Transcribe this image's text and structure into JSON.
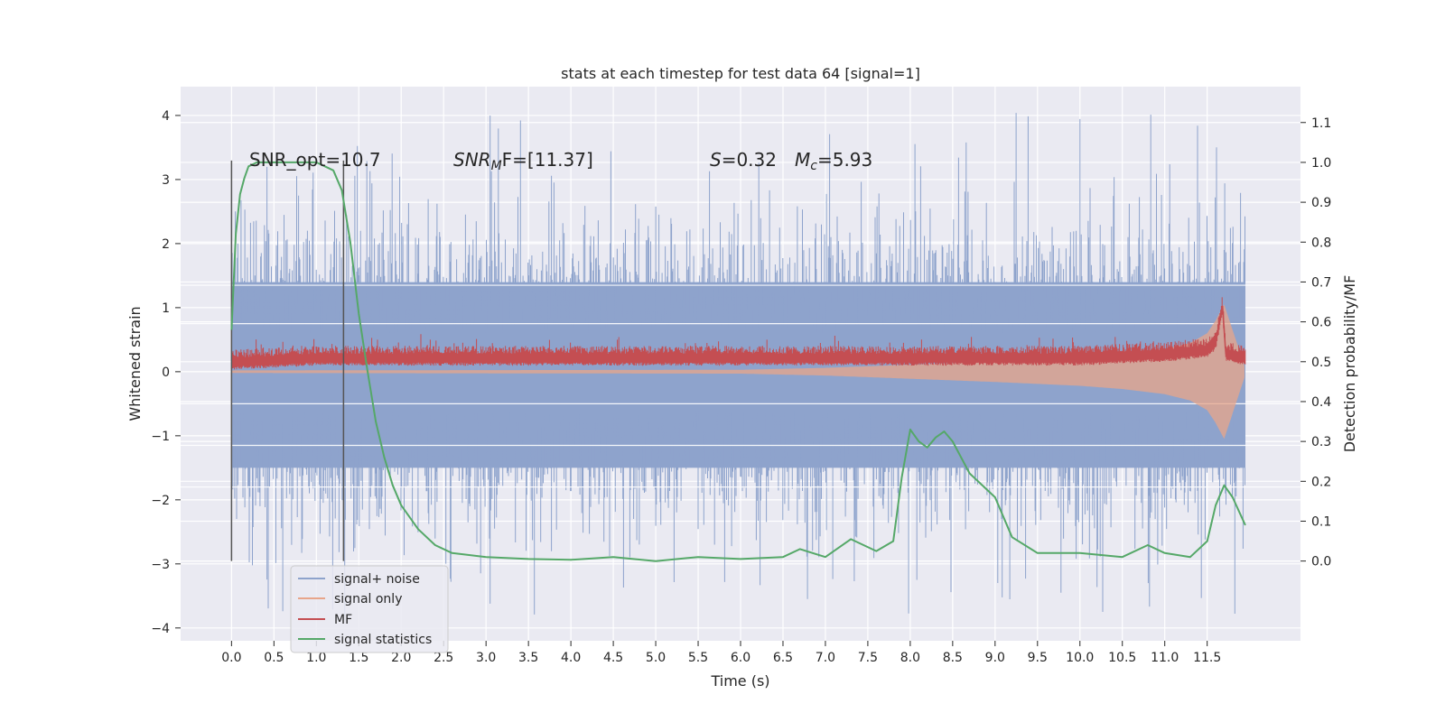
{
  "chart_data": {
    "type": "line",
    "title": "stats at each timestep for test data 64 [signal=1]",
    "xlabel": "Time (s)",
    "ylabel": "Whitened strain",
    "ylabel_right": "Detection probability/MF",
    "xlim": [
      -0.6,
      12.6
    ],
    "ylim": [
      -4.2,
      4.45
    ],
    "ylim_right": [
      -0.2,
      1.19
    ],
    "x_ticks": [
      "0.0",
      "0.5",
      "1.0",
      "1.5",
      "2.0",
      "2.5",
      "3.0",
      "3.5",
      "4.0",
      "4.5",
      "5.0",
      "5.5",
      "6.0",
      "6.5",
      "7.0",
      "7.5",
      "8.0",
      "8.5",
      "9.0",
      "9.5",
      "10.0",
      "10.5",
      "11.0",
      "11.5"
    ],
    "y_ticks": [
      "4",
      "3",
      "2",
      "1",
      "0",
      "−1",
      "−2",
      "−3",
      "−4"
    ],
    "y_ticks_right": [
      "1.1",
      "1.0",
      "0.9",
      "0.8",
      "0.7",
      "0.6",
      "0.5",
      "0.4",
      "0.3",
      "0.2",
      "0.1",
      "0.0"
    ],
    "grid": true,
    "legend_position": "lower-left",
    "annotations": {
      "snr_opt": "SNR_opt=10.7",
      "snr_mf_name": "SNR",
      "snr_mf_sub": "M",
      "snr_mf_rest": "F=[11.37]",
      "s_name": "S",
      "s_rest": "=0.32",
      "mc_name": "M",
      "mc_sub": "c",
      "mc_rest": "=5.93"
    },
    "vlines": [
      0.0,
      1.32
    ],
    "series": [
      {
        "name": "signal+ noise",
        "color": "#8ea3cc",
        "t_range": [
          0.0,
          11.95
        ],
        "envelope": {
          "upper": 1.4,
          "lower": -1.5,
          "peak_max": 4.1,
          "peak_min": -3.85
        }
      },
      {
        "name": "signal only",
        "color": "#e8a58a",
        "x": [
          0.0,
          6.0,
          7.0,
          8.0,
          9.0,
          10.0,
          10.5,
          11.0,
          11.3,
          11.5,
          11.6,
          11.7,
          11.95
        ],
        "amplitude": [
          0.02,
          0.03,
          0.06,
          0.11,
          0.16,
          0.22,
          0.27,
          0.35,
          0.45,
          0.6,
          0.8,
          1.05,
          0.05
        ]
      },
      {
        "name": "MF",
        "color": "#c44e52",
        "x": [
          0.0,
          1.0,
          2.0,
          3.0,
          4.0,
          5.0,
          6.0,
          7.0,
          8.0,
          9.0,
          10.0,
          11.0,
          11.5,
          11.6,
          11.68,
          11.72,
          11.95
        ],
        "y_right": [
          0.5,
          0.51,
          0.51,
          0.51,
          0.51,
          0.51,
          0.51,
          0.51,
          0.51,
          0.51,
          0.51,
          0.52,
          0.53,
          0.55,
          0.64,
          0.52,
          0.51
        ],
        "band_right": [
          0.48,
          0.54
        ]
      },
      {
        "name": "signal statistics",
        "color": "#55a868",
        "x": [
          0.0,
          0.05,
          0.1,
          0.15,
          0.2,
          0.3,
          0.5,
          0.8,
          1.0,
          1.1,
          1.2,
          1.3,
          1.4,
          1.5,
          1.6,
          1.7,
          1.8,
          1.9,
          2.0,
          2.2,
          2.4,
          2.6,
          3.0,
          3.5,
          4.0,
          4.5,
          5.0,
          5.5,
          6.0,
          6.5,
          6.7,
          7.0,
          7.3,
          7.6,
          7.8,
          7.9,
          8.0,
          8.1,
          8.2,
          8.3,
          8.4,
          8.5,
          8.7,
          9.0,
          9.2,
          9.5,
          10.0,
          10.5,
          10.8,
          11.0,
          11.3,
          11.5,
          11.6,
          11.7,
          11.8,
          11.95
        ],
        "y_right": [
          0.58,
          0.82,
          0.92,
          0.96,
          0.99,
          1.0,
          1.0,
          1.0,
          1.0,
          0.99,
          0.98,
          0.93,
          0.8,
          0.62,
          0.48,
          0.35,
          0.26,
          0.19,
          0.14,
          0.08,
          0.04,
          0.02,
          0.01,
          0.005,
          0.003,
          0.01,
          0.0,
          0.01,
          0.005,
          0.01,
          0.03,
          0.01,
          0.055,
          0.025,
          0.05,
          0.21,
          0.33,
          0.3,
          0.285,
          0.31,
          0.325,
          0.3,
          0.22,
          0.16,
          0.06,
          0.02,
          0.02,
          0.01,
          0.04,
          0.02,
          0.01,
          0.05,
          0.14,
          0.19,
          0.16,
          0.09
        ]
      }
    ]
  }
}
